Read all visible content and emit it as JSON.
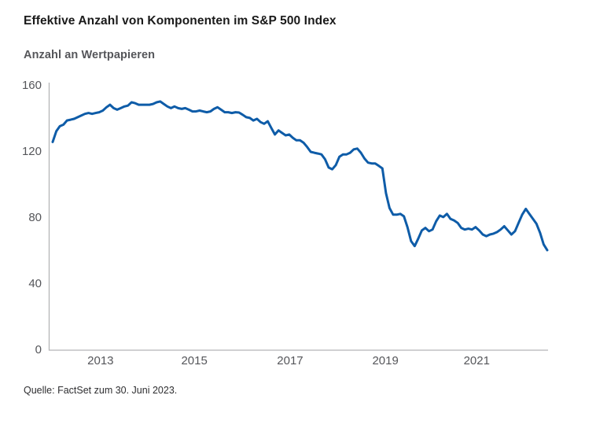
{
  "header": {
    "title": "Effektive Anzahl von Komponenten im S&P 500 Index",
    "subtitle": "Anzahl an Wertpapieren"
  },
  "footer": {
    "source": "Quelle: FactSet zum 30. Juni 2023."
  },
  "colors": {
    "line": "#0e5ca8",
    "axis": "#b4b5b7",
    "tick_text": "#55565a",
    "title_text": "#1a1a1a",
    "source_text": "#2e2e30",
    "background": "#ffffff"
  },
  "chart_data": {
    "type": "line",
    "title": "Effektive Anzahl von Komponenten im S&P 500 Index",
    "ylabel": "Anzahl an Wertpapieren",
    "xlabel": "",
    "source": "Quelle: FactSet zum 30. Juni 2023.",
    "grid": false,
    "legend": false,
    "ylim": [
      0,
      160
    ],
    "yticks": [
      0,
      40,
      80,
      120,
      160
    ],
    "x_start_year": 2012.0,
    "x_end_year": 2023.5,
    "x_frequency": "monthly",
    "xtick_labels": [
      "2013",
      "2015",
      "2017",
      "2019",
      "2021"
    ],
    "xtick_positions": [
      0.103,
      0.291,
      0.483,
      0.674,
      0.857
    ],
    "series": [
      {
        "name": "Effektive Anzahl von Komponenten im S&P 500 Index",
        "values": [
          126,
          132.5,
          135.5,
          136.5,
          139,
          139.5,
          140,
          141,
          142,
          143,
          143.5,
          143,
          143.5,
          144,
          145,
          147,
          148.5,
          146.5,
          145.5,
          146.5,
          147.5,
          148,
          150,
          149.5,
          148.5,
          148.5,
          148.5,
          148.5,
          149,
          150,
          150.5,
          149,
          147.5,
          146.5,
          147.5,
          146.5,
          146,
          146.5,
          145.5,
          144.5,
          144.5,
          145,
          144.5,
          144,
          144.5,
          146,
          147,
          145.5,
          144,
          144,
          143.5,
          144,
          143.8,
          142.5,
          141,
          140.5,
          139,
          140,
          138,
          137,
          138.5,
          134.5,
          130.5,
          133,
          131.5,
          130,
          130.5,
          128.5,
          127,
          127,
          125.5,
          123,
          120,
          119.5,
          119,
          118.5,
          115.5,
          110.5,
          109.5,
          112,
          117,
          118.5,
          118.5,
          119.5,
          121.5,
          122,
          119.5,
          116,
          113.5,
          113,
          113,
          111.5,
          110,
          95,
          86,
          82,
          82,
          82.5,
          81,
          74.5,
          66,
          63,
          67.5,
          72.5,
          74,
          72,
          73,
          78,
          81.5,
          80.5,
          82.5,
          79.5,
          78.5,
          77,
          74,
          73,
          73.5,
          73,
          74.5,
          72.5,
          70,
          69,
          70,
          70.5,
          71.5,
          73,
          75,
          72.5,
          70,
          72,
          77,
          82,
          85.5,
          82.5,
          79.5,
          76.5,
          71,
          64,
          60.5
        ]
      }
    ]
  }
}
